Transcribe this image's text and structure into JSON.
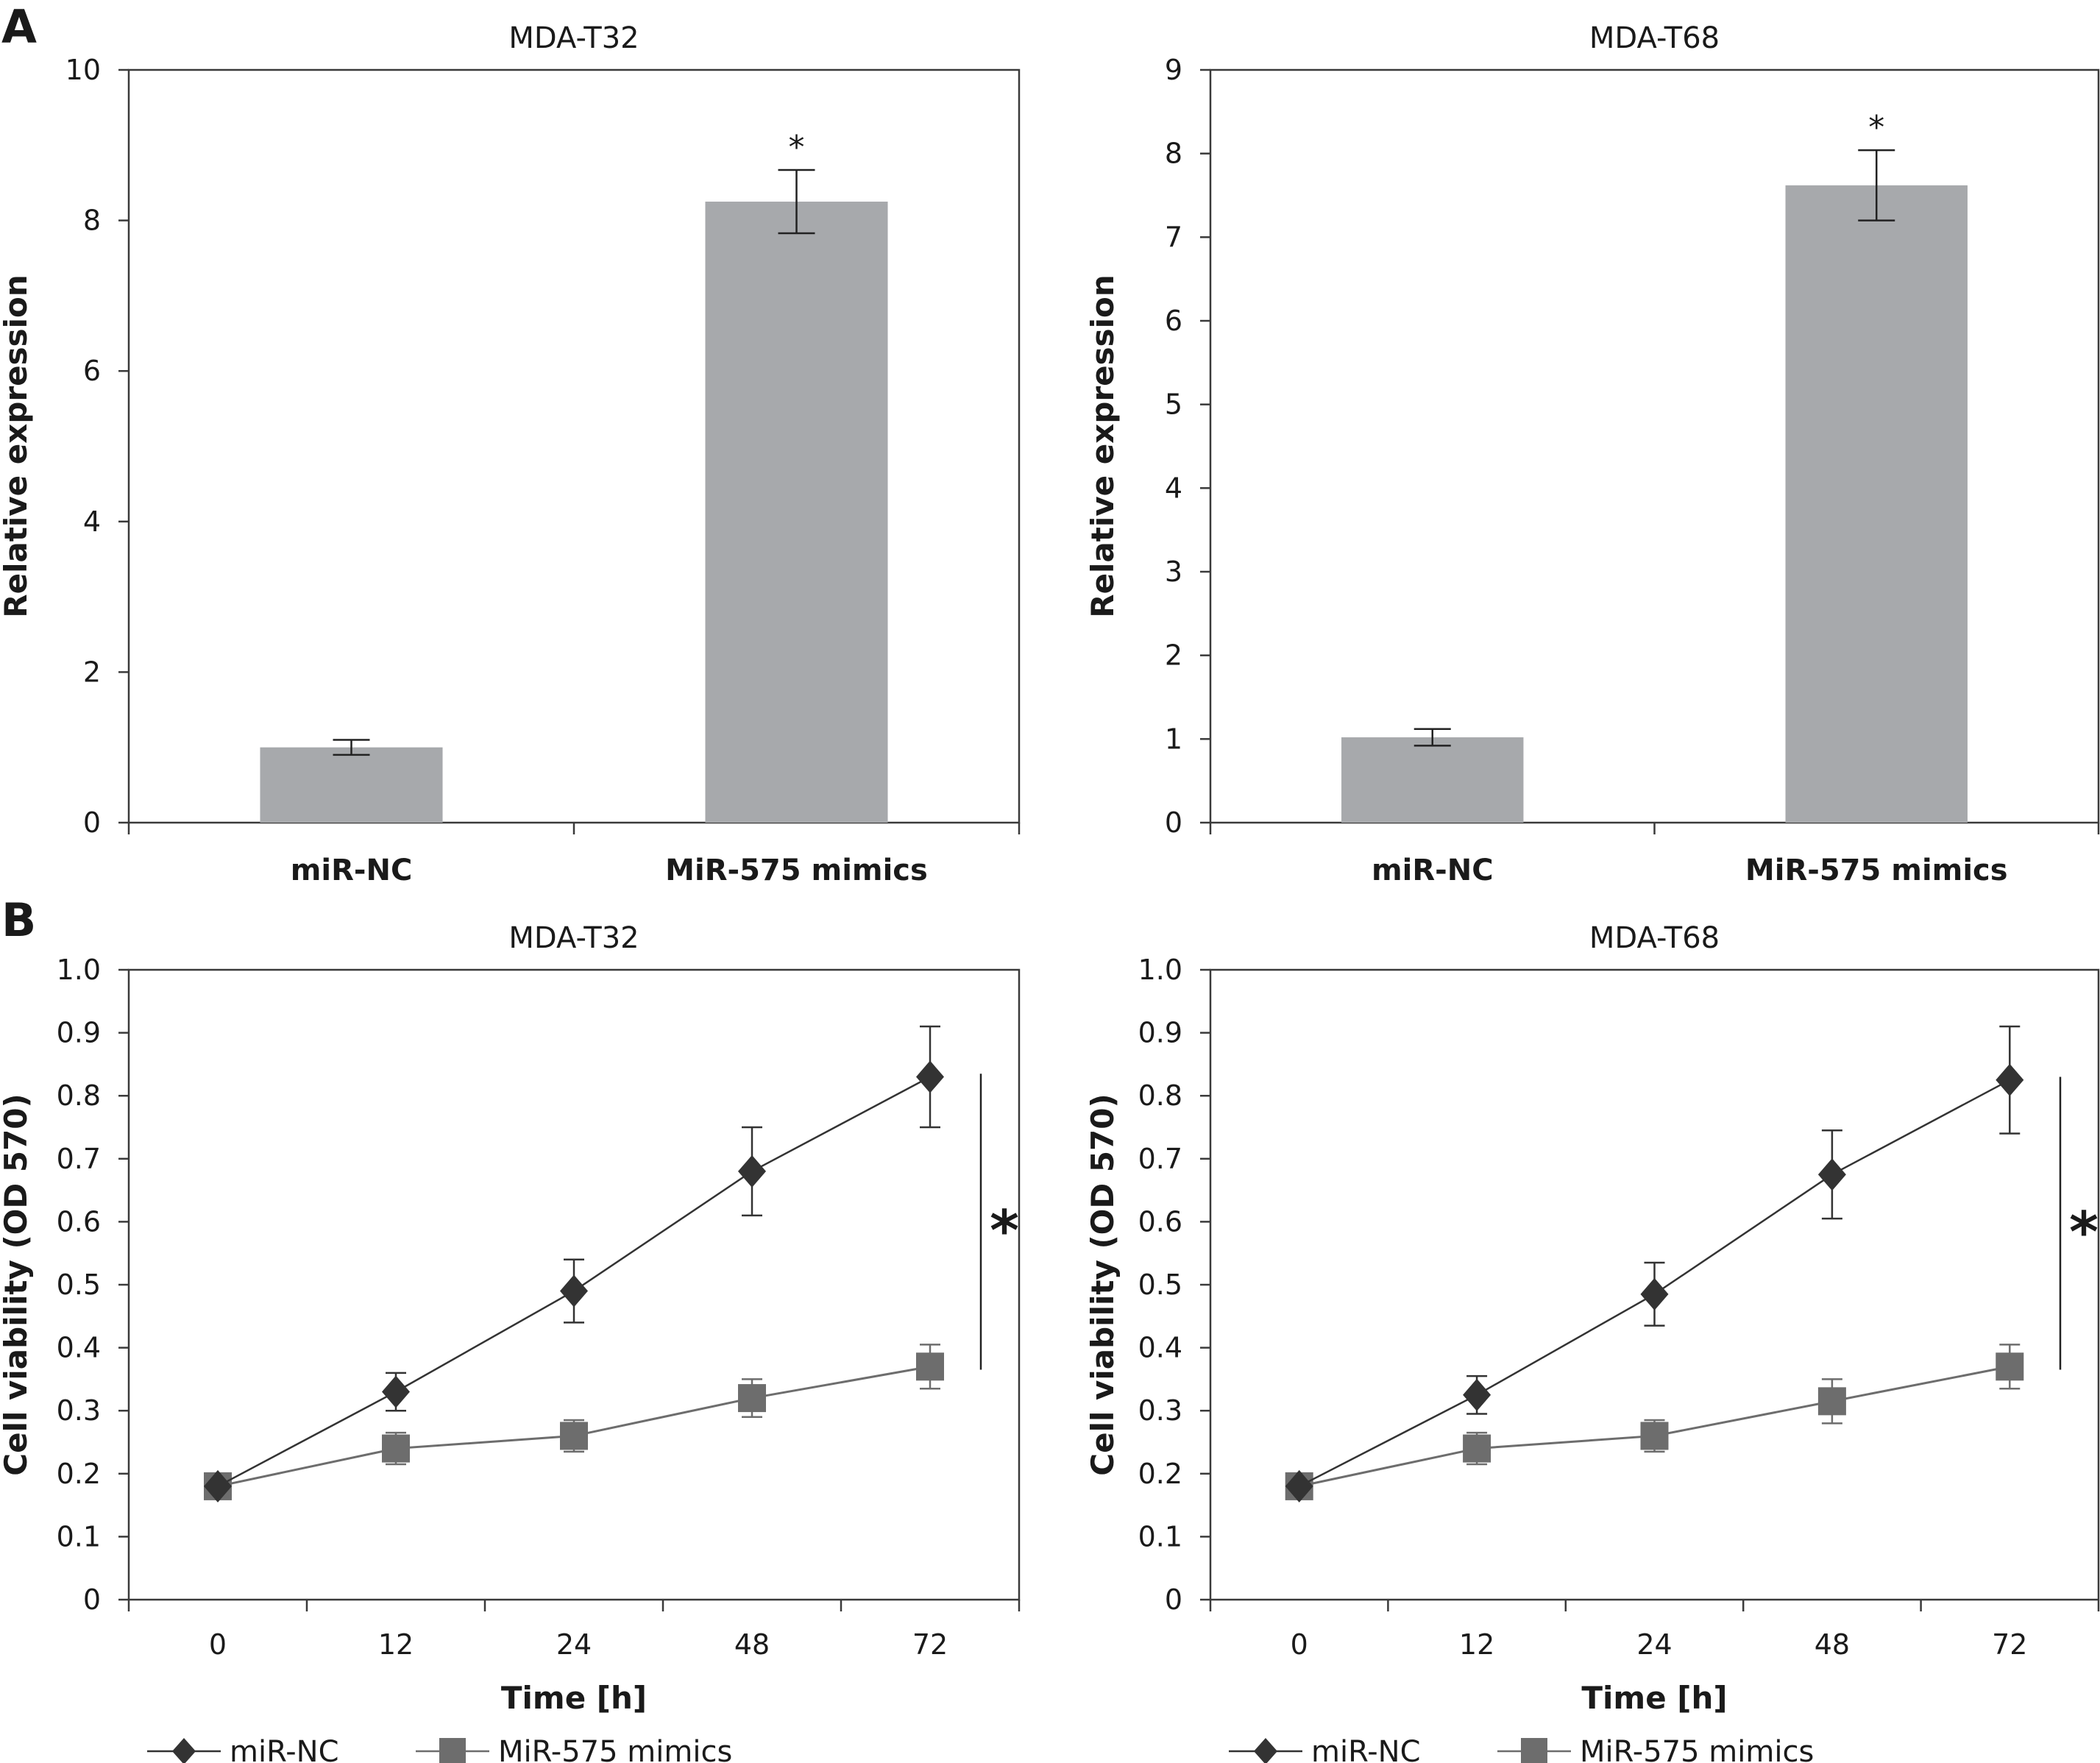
{
  "panel_labels": [
    "A",
    "B"
  ],
  "colors": {
    "bar": "#a7a9ac",
    "axis": "#3a3a3a",
    "series_nc": "#333333",
    "series_mimics": "#6d6d6d"
  },
  "chart_data": [
    {
      "type": "bar",
      "panel": "A",
      "title": "MDA-T32",
      "categories": [
        "miR-NC",
        "MiR-575 mimics"
      ],
      "values": [
        1.0,
        8.25
      ],
      "errors": [
        0.1,
        0.42
      ],
      "significance": [
        "",
        "*"
      ],
      "ylabel": "Relative expression",
      "ylim": [
        0,
        10
      ],
      "yticks": [
        0,
        2,
        4,
        6,
        8,
        10
      ],
      "grid": false
    },
    {
      "type": "bar",
      "panel": "A",
      "title": "MDA-T68",
      "categories": [
        "miR-NC",
        "MiR-575 mimics"
      ],
      "values": [
        1.02,
        7.62
      ],
      "errors": [
        0.1,
        0.42
      ],
      "significance": [
        "",
        "*"
      ],
      "ylabel": "Relative expression",
      "ylim": [
        0,
        9
      ],
      "yticks": [
        0,
        1,
        2,
        3,
        4,
        5,
        6,
        7,
        8,
        9
      ],
      "grid": false
    },
    {
      "type": "line",
      "panel": "B",
      "title": "MDA-T32",
      "categories": [
        "0",
        "12",
        "24",
        "48",
        "72"
      ],
      "xlabel": "Time [h]",
      "ylabel": "Cell viability (OD 570)",
      "ylim": [
        0,
        1.0
      ],
      "yticks": [
        "0",
        "0.1",
        "0.2",
        "0.3",
        "0.4",
        "0.5",
        "0.6",
        "0.7",
        "0.8",
        "0.9",
        "1.0"
      ],
      "legend_position": "bottom",
      "significance": "*",
      "grid": false,
      "series": [
        {
          "name": "miR-NC",
          "marker": "diamond",
          "values": [
            0.18,
            0.33,
            0.49,
            0.68,
            0.83
          ],
          "errors": [
            0,
            0.03,
            0.05,
            0.07,
            0.08
          ]
        },
        {
          "name": "MiR-575 mimics",
          "marker": "square",
          "values": [
            0.18,
            0.24,
            0.26,
            0.32,
            0.37
          ],
          "errors": [
            0,
            0.025,
            0.025,
            0.03,
            0.035
          ]
        }
      ]
    },
    {
      "type": "line",
      "panel": "B",
      "title": "MDA-T68",
      "categories": [
        "0",
        "12",
        "24",
        "48",
        "72"
      ],
      "xlabel": "Time [h]",
      "ylabel": "Cell viability (OD 570)",
      "ylim": [
        0,
        1.0
      ],
      "yticks": [
        "0",
        "0.1",
        "0.2",
        "0.3",
        "0.4",
        "0.5",
        "0.6",
        "0.7",
        "0.8",
        "0.9",
        "1.0"
      ],
      "legend_position": "bottom",
      "significance": "*",
      "grid": false,
      "series": [
        {
          "name": "miR-NC",
          "marker": "diamond",
          "values": [
            0.18,
            0.325,
            0.485,
            0.675,
            0.825
          ],
          "errors": [
            0,
            0.03,
            0.05,
            0.07,
            0.085
          ]
        },
        {
          "name": "MiR-575 mimics",
          "marker": "square",
          "values": [
            0.18,
            0.24,
            0.26,
            0.315,
            0.37
          ],
          "errors": [
            0,
            0.025,
            0.025,
            0.035,
            0.035
          ]
        }
      ]
    }
  ]
}
